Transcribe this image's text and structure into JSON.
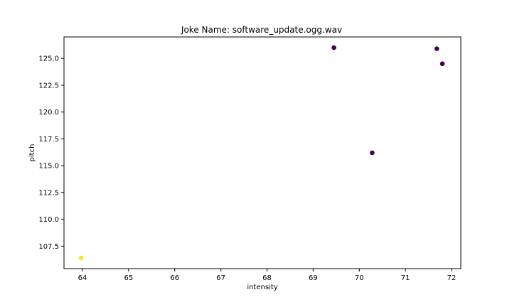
{
  "chart_data": {
    "type": "scatter",
    "title": "Joke Name: software_update.ogg.wav",
    "xlabel": "intensity",
    "ylabel": "pitch",
    "xlim": [
      63.6,
      72.2
    ],
    "ylim": [
      105.4,
      127.0
    ],
    "grid": false,
    "legend": "none",
    "xticks": [
      64,
      65,
      66,
      67,
      68,
      69,
      70,
      71,
      72
    ],
    "xtick_labels": [
      "64",
      "65",
      "66",
      "67",
      "68",
      "69",
      "70",
      "71",
      "72"
    ],
    "yticks": [
      107.5,
      110.0,
      112.5,
      115.0,
      117.5,
      120.0,
      122.5,
      125.0
    ],
    "ytick_labels": [
      "107.5",
      "110.0",
      "112.5",
      "115.0",
      "117.5",
      "120.0",
      "122.5",
      "125.0"
    ],
    "points": [
      {
        "x": 63.97,
        "y": 106.4,
        "color": "#fde725"
      },
      {
        "x": 69.45,
        "y": 126.0,
        "color": "#440154"
      },
      {
        "x": 70.28,
        "y": 116.2,
        "color": "#440154"
      },
      {
        "x": 71.68,
        "y": 125.9,
        "color": "#440154"
      },
      {
        "x": 71.8,
        "y": 124.5,
        "color": "#440154"
      }
    ]
  }
}
